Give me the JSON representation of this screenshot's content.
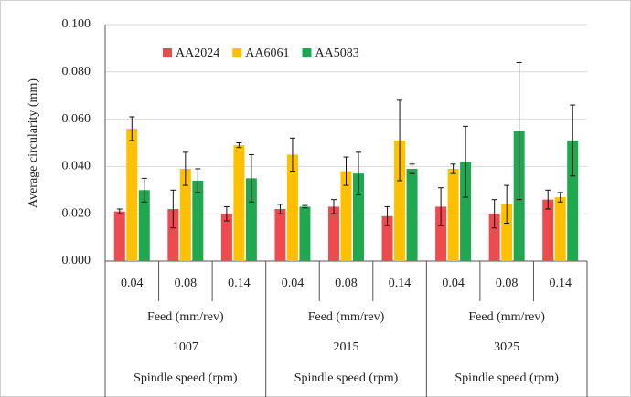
{
  "chart_data": {
    "type": "bar",
    "y_label": "Average circularity (mm)",
    "categories": [
      "0.04",
      "0.08",
      "0.14",
      "0.04",
      "0.08",
      "0.14",
      "0.04",
      "0.08",
      "0.14"
    ],
    "groups": [
      {
        "name": "1007",
        "feed_label": "Feed (mm/rev)",
        "speed_label": "Spindle speed (rpm)"
      },
      {
        "name": "2015",
        "feed_label": "Feed (mm/rev)",
        "speed_label": "Spindle speed (rpm)"
      },
      {
        "name": "3025",
        "feed_label": "Feed (mm/rev)",
        "speed_label": "Spindle speed (rpm)"
      }
    ],
    "series": [
      {
        "name": "AA2024",
        "color": "#ee4b50",
        "values": [
          0.021,
          0.022,
          0.02,
          0.022,
          0.023,
          0.019,
          0.023,
          0.02,
          0.026
        ],
        "errors": [
          0.001,
          0.008,
          0.003,
          0.002,
          0.003,
          0.004,
          0.008,
          0.006,
          0.004
        ]
      },
      {
        "name": "AA6061",
        "color": "#ffc000",
        "values": [
          0.056,
          0.039,
          0.049,
          0.045,
          0.038,
          0.051,
          0.039,
          0.024,
          0.027
        ],
        "errors": [
          0.005,
          0.007,
          0.001,
          0.007,
          0.006,
          0.017,
          0.002,
          0.008,
          0.002
        ]
      },
      {
        "name": "AA5083",
        "color": "#1fa84f",
        "values": [
          0.03,
          0.034,
          0.035,
          0.023,
          0.037,
          0.039,
          0.042,
          0.055,
          0.051
        ],
        "errors": [
          0.005,
          0.005,
          0.01,
          0.0005,
          0.009,
          0.002,
          0.015,
          0.029,
          0.015
        ]
      }
    ],
    "ylim": [
      0,
      0.1
    ],
    "yticks": [
      {
        "value": 0,
        "label": "0.000"
      },
      {
        "value": 0.02,
        "label": "0.020"
      },
      {
        "value": 0.04,
        "label": "0.040"
      },
      {
        "value": 0.06,
        "label": "0.060"
      },
      {
        "value": 0.08,
        "label": "0.080"
      },
      {
        "value": 0.1,
        "label": "0.100"
      }
    ],
    "grid": true,
    "legend": "top"
  }
}
